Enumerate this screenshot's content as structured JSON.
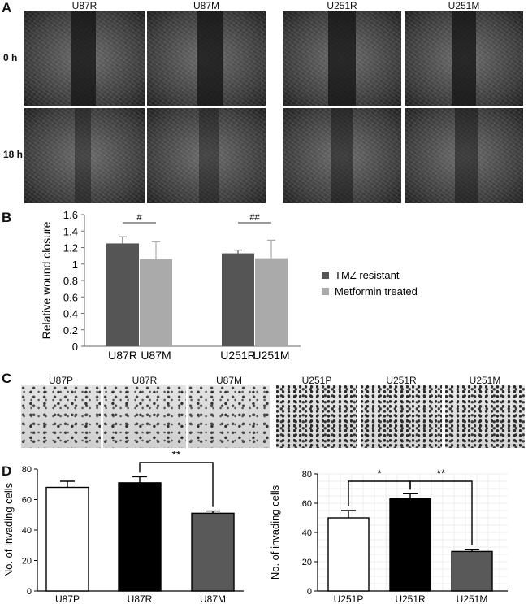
{
  "panels": {
    "A": {
      "letter": "A",
      "columns": [
        "U87R",
        "U87M",
        "U251R",
        "U251M"
      ],
      "rows": [
        "0 h",
        "18 h"
      ]
    },
    "B": {
      "letter": "B"
    },
    "C": {
      "letter": "C",
      "columns": [
        "U87P",
        "U87R",
        "U87M",
        "U251P",
        "U251R",
        "U251M"
      ]
    },
    "D": {
      "letter": "D"
    }
  },
  "chart_data": [
    {
      "id": "B",
      "type": "bar",
      "categories": [
        "U87R",
        "U87M",
        "U251R",
        "U251M"
      ],
      "series": [
        {
          "name": "TMZ resistant",
          "color": "#555555",
          "values": [
            1.25,
            null,
            1.13,
            null
          ],
          "errors": [
            0.08,
            null,
            0.04,
            null
          ]
        },
        {
          "name": "Metformin treated",
          "color": "#aaaaaa",
          "values": [
            null,
            1.06,
            null,
            1.07
          ],
          "errors": [
            null,
            0.21,
            null,
            0.22
          ]
        }
      ],
      "ylabel": "Relative wound closure",
      "yticks": [
        "0",
        "0.2",
        "0.4",
        "0.6",
        "0.8",
        "1",
        "1.2",
        "1.4",
        "1.6"
      ],
      "ylim": [
        0,
        1.6
      ],
      "significance": [
        {
          "between": [
            "U87R",
            "U87M"
          ],
          "label": "#"
        },
        {
          "between": [
            "U251R",
            "U251M"
          ],
          "label": "##"
        }
      ],
      "legend": "right"
    },
    {
      "id": "D-left",
      "type": "bar",
      "categories": [
        "U87P",
        "U87R",
        "U87M"
      ],
      "values": [
        68,
        71,
        51
      ],
      "errors": [
        4,
        4,
        1.5
      ],
      "fills": [
        "#ffffff",
        "#000000",
        "#595959"
      ],
      "ylabel": "No. of invading cells",
      "yticks": [
        "0",
        "20",
        "40",
        "60",
        "80"
      ],
      "ylim": [
        0,
        80
      ],
      "significance": [
        {
          "between": [
            "U87R",
            "U87M"
          ],
          "label": "**"
        }
      ]
    },
    {
      "id": "D-right",
      "type": "bar",
      "categories": [
        "U251P",
        "U251R",
        "U251M"
      ],
      "values": [
        50,
        63,
        27
      ],
      "errors": [
        5,
        3.5,
        1.5
      ],
      "fills": [
        "#ffffff",
        "#000000",
        "#595959"
      ],
      "ylabel": "No. of invading cells",
      "yticks": [
        "0",
        "20",
        "40",
        "60",
        "80"
      ],
      "ylim": [
        0,
        80
      ],
      "grid": true,
      "significance": [
        {
          "between": [
            "U251P",
            "U251R"
          ],
          "label": "*"
        },
        {
          "between": [
            "U251R",
            "U251M"
          ],
          "label": "**"
        }
      ]
    }
  ]
}
